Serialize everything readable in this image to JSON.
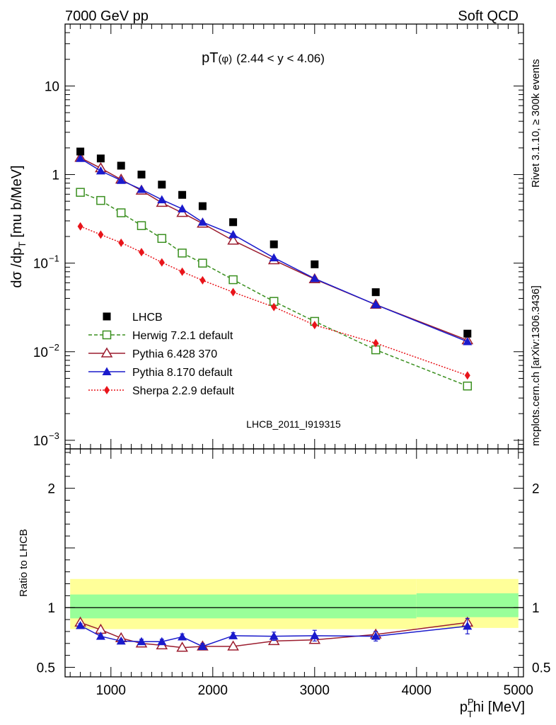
{
  "header": {
    "left": "7000 GeV pp",
    "right": "Soft QCD",
    "plot_title": "pT",
    "plot_title_sub": "(φ)",
    "plot_title_range": "(2.44 < y < 4.06)",
    "side_rivet": "Rivet 3.1.10, ≥ 300k events",
    "side_mcplots": "mcplots.cern.ch [arXiv:1306.3436]",
    "analysis_id": "LHCB_2011_I919315"
  },
  "colors": {
    "LHCB": "#000000",
    "herwig": "#3a8f1f",
    "pythia6": "#9b1c2e",
    "pythia8": "#1a1acc",
    "sherpa": "#e8141a",
    "band_outer": "#ffff99",
    "band_inner": "#99ff99"
  },
  "chart_data": [
    {
      "type": "line",
      "ylabel_main": "dσ /dp",
      "ylabel_sub": "T",
      "ylabel_unit": " [mu b/MeV]",
      "yscale": "log",
      "ylim": [
        0.0008,
        50
      ],
      "xlim": [
        550,
        5050
      ],
      "ytick_labels": [
        {
          "v": 10,
          "text": "10"
        },
        {
          "v": 1,
          "text": "1"
        },
        {
          "v": 0.1,
          "base": "10",
          "exp": "−1"
        },
        {
          "v": 0.01,
          "base": "10",
          "exp": "−2"
        },
        {
          "v": 0.001,
          "base": "10",
          "exp": "−3"
        }
      ],
      "legend": [
        {
          "key": "LHCB",
          "label": "LHCB"
        },
        {
          "key": "herwig",
          "label": "Herwig 7.2.1 default"
        },
        {
          "key": "pythia6",
          "label": "Pythia 6.428 370"
        },
        {
          "key": "pythia8",
          "label": "Pythia 8.170 default"
        },
        {
          "key": "sherpa",
          "label": "Sherpa 2.2.9 default"
        }
      ],
      "series": [
        {
          "key": "LHCB",
          "name": "LHCB",
          "x": [
            700,
            900,
            1100,
            1300,
            1500,
            1700,
            1900,
            2200,
            2600,
            3000,
            3600,
            4500
          ],
          "y": [
            1.82,
            1.52,
            1.26,
            1.0,
            0.77,
            0.59,
            0.44,
            0.29,
            0.163,
            0.097,
            0.047,
            0.016
          ]
        },
        {
          "key": "herwig",
          "name": "Herwig 7.2.1 default",
          "x": [
            700,
            900,
            1100,
            1300,
            1500,
            1700,
            1900,
            2200,
            2600,
            3000,
            3600,
            4500
          ],
          "y": [
            0.63,
            0.51,
            0.37,
            0.265,
            0.19,
            0.13,
            0.1,
            0.065,
            0.037,
            0.022,
            0.0105,
            0.0041
          ]
        },
        {
          "key": "pythia6",
          "name": "Pythia 6.428 370",
          "x": [
            700,
            900,
            1100,
            1300,
            1500,
            1700,
            1900,
            2200,
            2600,
            3000,
            3600,
            4500
          ],
          "y": [
            1.55,
            1.18,
            0.88,
            0.66,
            0.48,
            0.37,
            0.28,
            0.18,
            0.108,
            0.066,
            0.034,
            0.0135
          ]
        },
        {
          "key": "pythia8",
          "name": "Pythia 8.170 default",
          "x": [
            700,
            900,
            1100,
            1300,
            1500,
            1700,
            1900,
            2200,
            2600,
            3000,
            3600,
            4500
          ],
          "y": [
            1.52,
            1.1,
            0.86,
            0.68,
            0.52,
            0.41,
            0.29,
            0.21,
            0.115,
            0.067,
            0.034,
            0.013
          ]
        },
        {
          "key": "sherpa",
          "name": "Sherpa 2.2.9 default",
          "x": [
            700,
            900,
            1100,
            1300,
            1500,
            1700,
            1900,
            2200,
            2600,
            3000,
            3600,
            4500
          ],
          "y": [
            0.26,
            0.21,
            0.17,
            0.133,
            0.102,
            0.08,
            0.064,
            0.047,
            0.032,
            0.02,
            0.0125,
            0.0054
          ]
        }
      ]
    },
    {
      "type": "line",
      "ylabel": "Ratio to LHCB",
      "xlabel_main": "p",
      "xlabel_sub": "T",
      "xlabel_sup": "P",
      "xlabel_unit": "hi [MeV]",
      "ylim": [
        0.42,
        2.33
      ],
      "xlim": [
        550,
        5050
      ],
      "ytick_labels": [
        0.5,
        1,
        2
      ],
      "xtick_labels": [
        1000,
        2000,
        3000,
        4000,
        5000
      ],
      "bands": [
        {
          "x0": 600,
          "x1": 4000,
          "inner": [
            0.91,
            1.11
          ],
          "outer": [
            0.82,
            1.24
          ]
        },
        {
          "x0": 4000,
          "x1": 5000,
          "inner": [
            0.92,
            1.12
          ],
          "outer": [
            0.83,
            1.24
          ]
        }
      ],
      "series": [
        {
          "key": "pythia6",
          "name": "Pythia 6.428 370",
          "x": [
            700,
            900,
            1100,
            1300,
            1500,
            1700,
            1900,
            2200,
            2600,
            3000,
            3600,
            4500
          ],
          "y": [
            0.875,
            0.815,
            0.745,
            0.7,
            0.685,
            0.665,
            0.675,
            0.675,
            0.72,
            0.73,
            0.775,
            0.875
          ]
        },
        {
          "key": "pythia8",
          "name": "Pythia 8.170 default",
          "x": [
            700,
            900,
            1100,
            1300,
            1500,
            1700,
            1900,
            2200,
            2600,
            3000,
            3600,
            4500
          ],
          "y": [
            0.85,
            0.76,
            0.72,
            0.715,
            0.715,
            0.755,
            0.675,
            0.765,
            0.76,
            0.765,
            0.76,
            0.845
          ],
          "err": [
            0.015,
            0.015,
            0.015,
            0.02,
            0.02,
            0.025,
            0.025,
            0.025,
            0.035,
            0.045,
            0.04,
            0.065
          ]
        }
      ]
    }
  ]
}
